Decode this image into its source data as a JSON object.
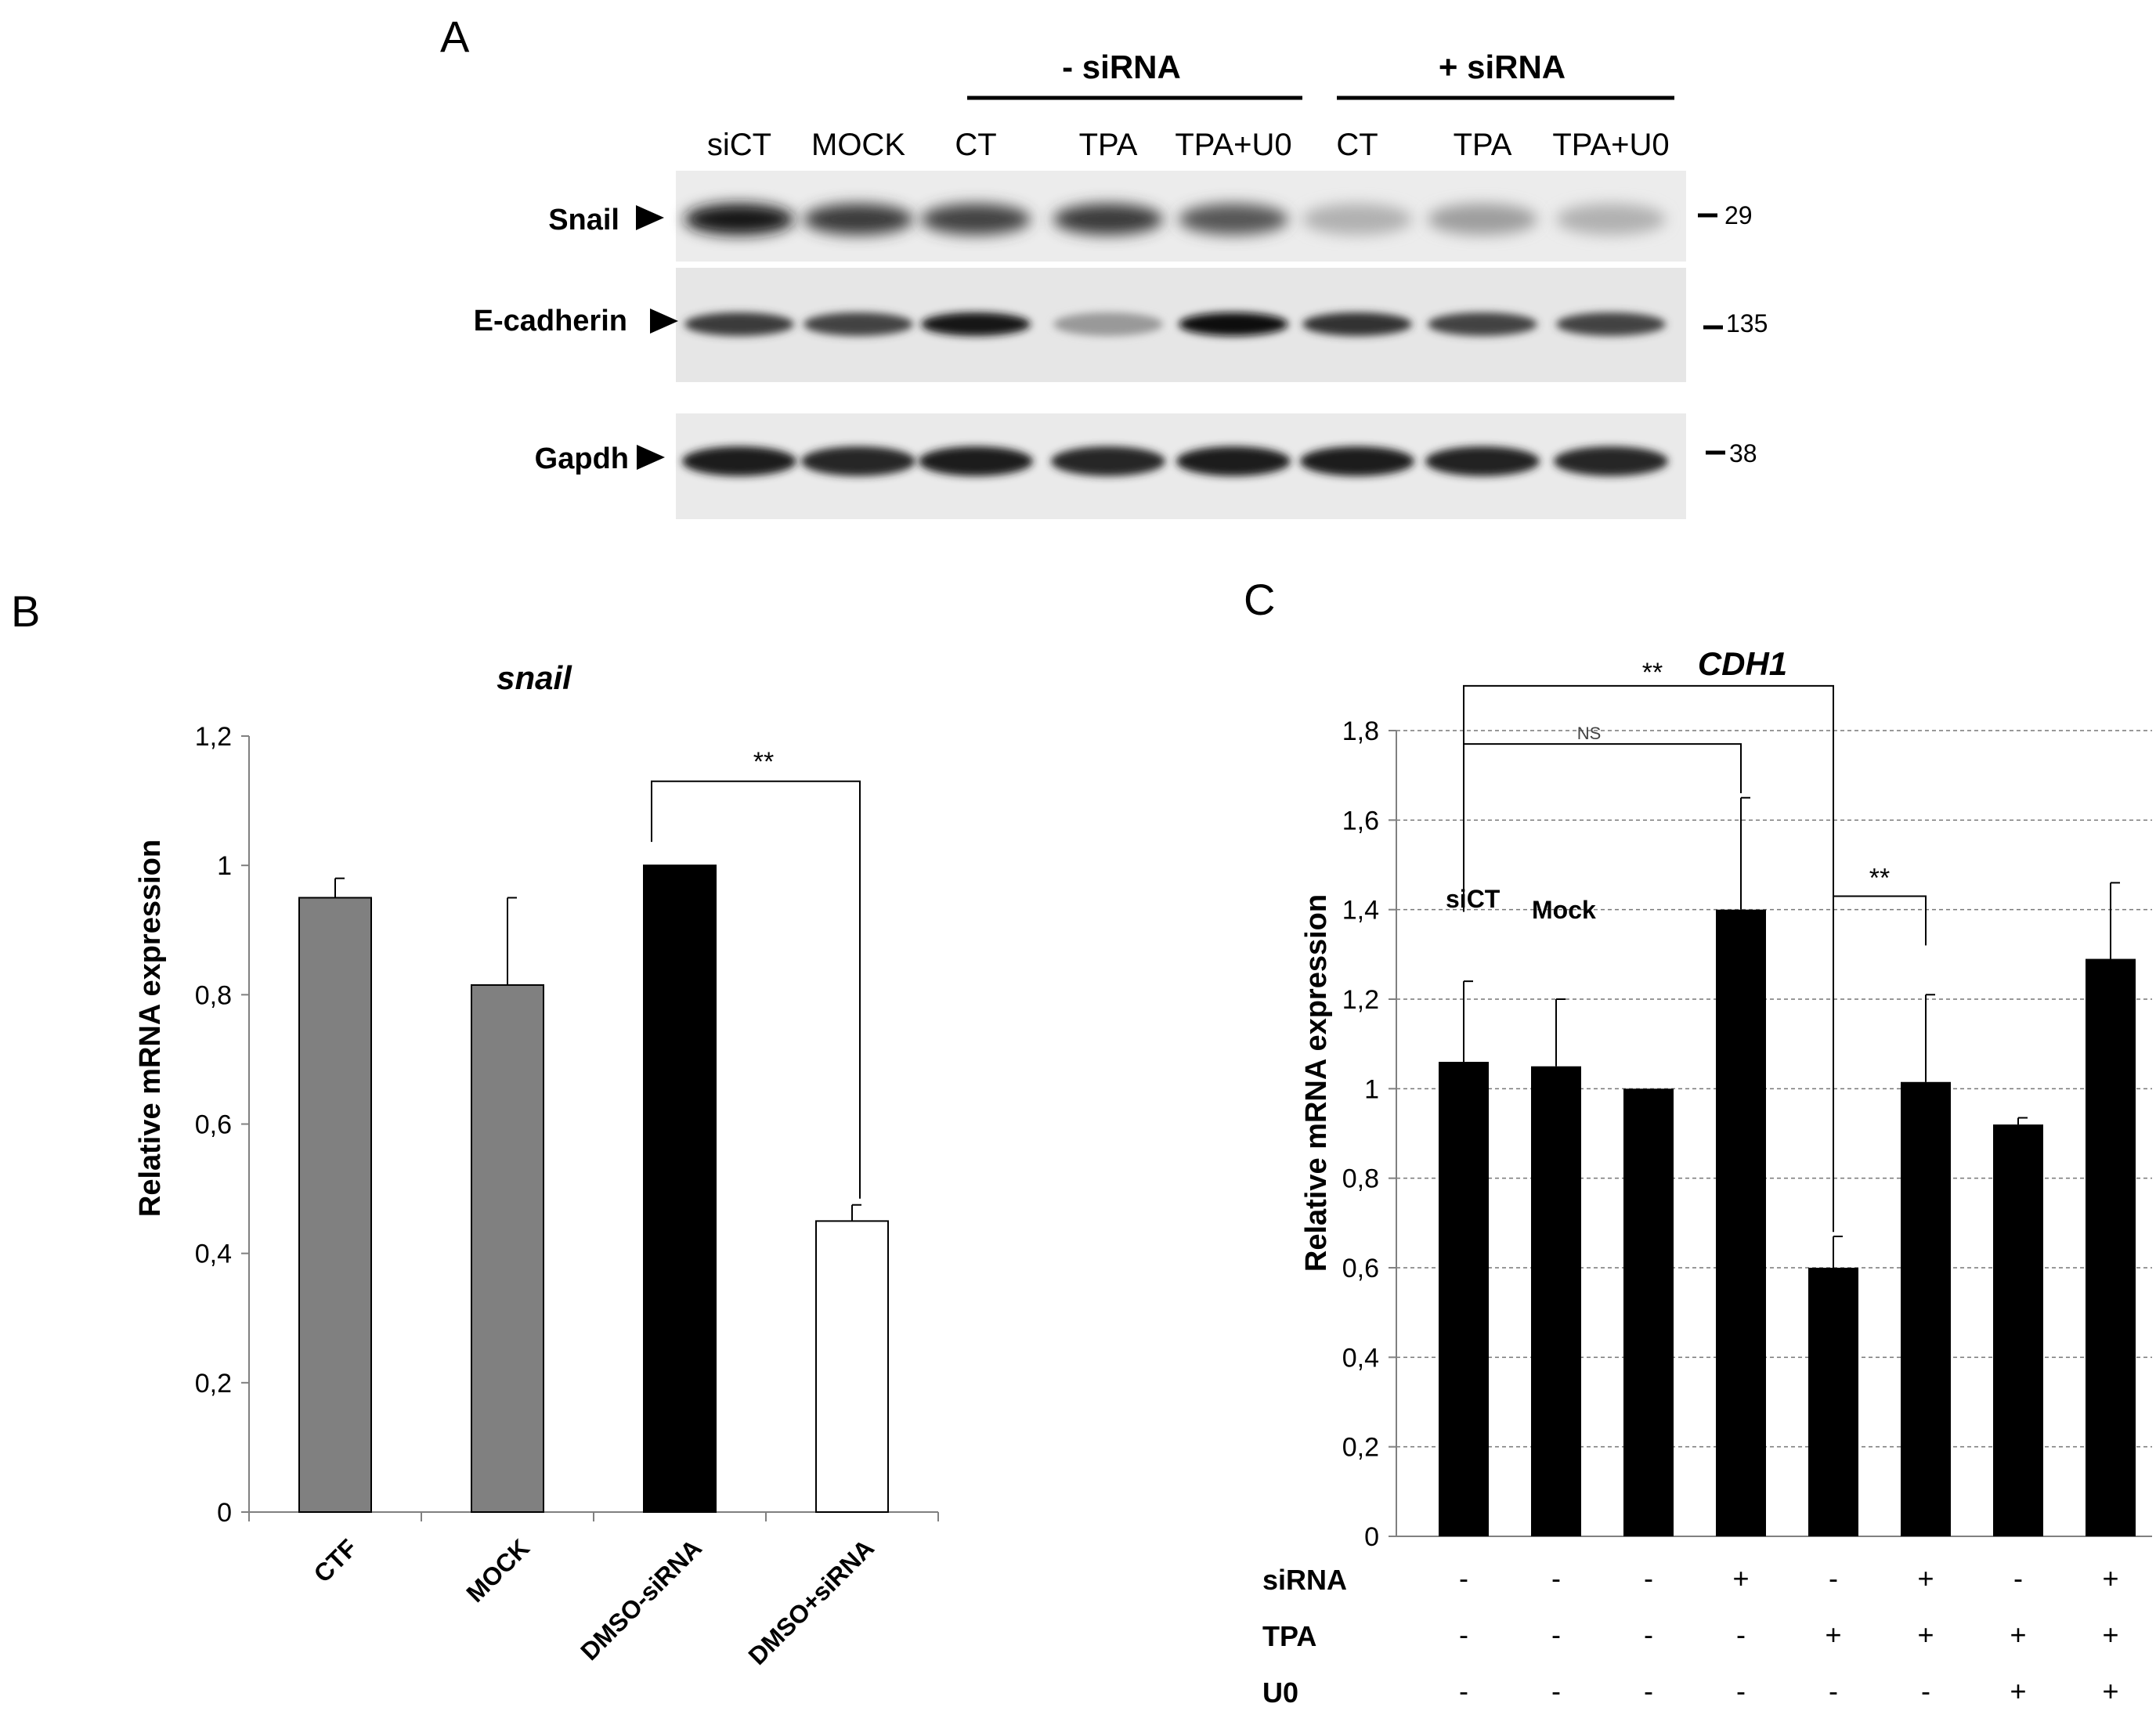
{
  "panel_a": {
    "letter": "A",
    "groups": [
      {
        "label": "- siRNA"
      },
      {
        "label": "+ siRNA"
      }
    ],
    "lanes": [
      "siCT",
      "MOCK",
      "CT",
      "TPA",
      "TPA+U0",
      "CT",
      "TPA",
      "TPA+U0"
    ],
    "blots": [
      {
        "label": "Snail",
        "mw": "29"
      },
      {
        "label": "E-cadherin",
        "mw": "135"
      },
      {
        "label": "Gapdh",
        "mw": "38"
      }
    ]
  },
  "chart_data": [
    {
      "panel": "B",
      "type": "bar",
      "title": "snail",
      "ylabel": "Relative mRNA expression",
      "ylim": [
        0,
        1.2
      ],
      "yticks": [
        "0",
        "0,2",
        "0,4",
        "0,6",
        "0,8",
        "1",
        "1,2"
      ],
      "categories": [
        "CTF",
        "MOCK",
        "DMSO-siRNA",
        "DMSO+siRNA"
      ],
      "values": [
        0.95,
        0.815,
        1.0,
        0.45
      ],
      "errors": [
        0.03,
        0.135,
        0.0,
        0.025
      ],
      "colors": [
        "#808080",
        "#808080",
        "#000000",
        "#ffffff"
      ],
      "significance": [
        {
          "from": 2,
          "to": 3,
          "label": "**"
        }
      ]
    },
    {
      "panel": "C",
      "type": "bar",
      "title": "CDH1",
      "ylabel": "Relative mRNA expression",
      "ylim": [
        0,
        1.8
      ],
      "yticks": [
        "0",
        "0,2",
        "0,4",
        "0,6",
        "0,8",
        "1",
        "1,2",
        "1,4",
        "1,6",
        "1,8"
      ],
      "grid": true,
      "values": [
        1.06,
        1.05,
        1.0,
        1.4,
        0.6,
        1.015,
        0.92,
        1.29
      ],
      "errors": [
        0.18,
        0.15,
        0.0,
        0.25,
        0.07,
        0.195,
        0.015,
        0.17
      ],
      "bar_labels": [
        {
          "index": 0,
          "text": "siCT"
        },
        {
          "index": 1,
          "text": "Mock"
        }
      ],
      "significance": [
        {
          "from": 0,
          "to": 4,
          "label": "**"
        },
        {
          "from": 0,
          "to": 3,
          "label": "NS"
        },
        {
          "from": 4,
          "to": 5,
          "label": "**"
        }
      ],
      "treatments": [
        {
          "name": "siRNA",
          "signs": [
            "-",
            "-",
            "-",
            "+",
            "-",
            "+",
            "-",
            "+"
          ]
        },
        {
          "name": "TPA",
          "signs": [
            "-",
            "-",
            "-",
            "-",
            "+",
            "+",
            "+",
            "+"
          ]
        },
        {
          "name": "U0",
          "signs": [
            "-",
            "-",
            "-",
            "-",
            "-",
            "-",
            "+",
            "+"
          ]
        }
      ]
    }
  ],
  "panel_b_letter": "B",
  "panel_c_letter": "C"
}
